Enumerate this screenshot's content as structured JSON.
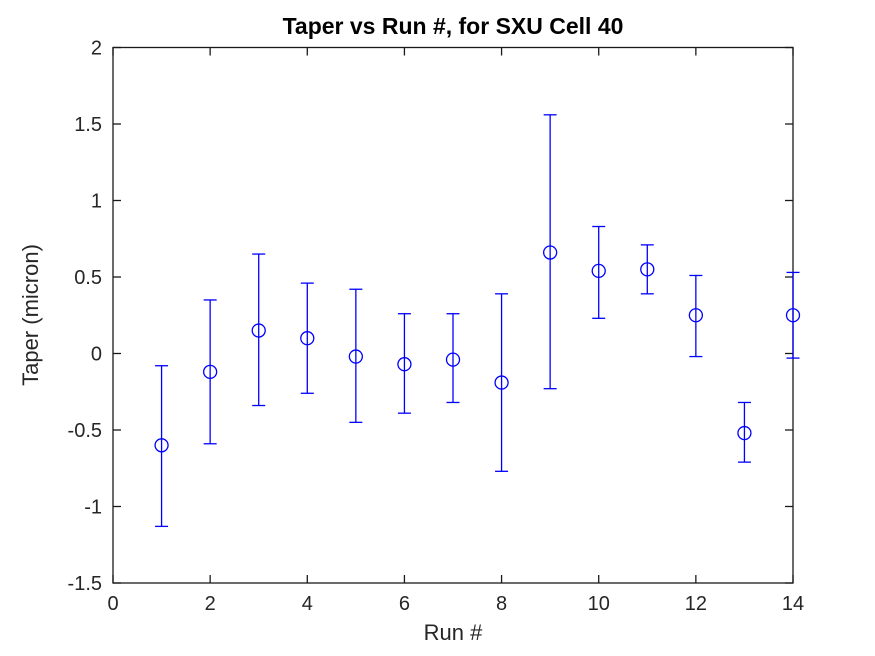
{
  "figure": {
    "background": "#ffffff"
  },
  "chart_data": {
    "type": "scatter",
    "subtype": "errorbar",
    "title": "Taper vs Run #, for SXU Cell 40",
    "xlabel": "Run #",
    "ylabel": "Taper (micron)",
    "xlim": [
      0,
      14
    ],
    "ylim": [
      -1.5,
      2
    ],
    "xticks": [
      0,
      2,
      4,
      6,
      8,
      10,
      12,
      14
    ],
    "yticks": [
      -1.5,
      -1,
      -0.5,
      0,
      0.5,
      1,
      1.5,
      2
    ],
    "grid": false,
    "legend": "none",
    "tick_direction": "in",
    "marker": "circle",
    "colors": {
      "data": "#0000ff",
      "axis": "#1a1a1a",
      "tick_label": "#262626",
      "title": "#000000"
    },
    "series": [
      {
        "name": "Taper",
        "color": "#0000ff",
        "x": [
          1,
          2,
          3,
          4,
          5,
          6,
          7,
          8,
          9,
          10,
          11,
          12,
          13,
          14
        ],
        "y": [
          -0.6,
          -0.12,
          0.15,
          0.1,
          -0.02,
          -0.07,
          -0.04,
          -0.19,
          0.66,
          0.54,
          0.55,
          0.25,
          -0.52,
          0.25
        ],
        "y_lower": [
          -1.13,
          -0.59,
          -0.34,
          -0.26,
          -0.45,
          -0.39,
          -0.32,
          -0.77,
          -0.23,
          0.23,
          0.39,
          -0.02,
          -0.71,
          -0.03
        ],
        "y_upper": [
          -0.08,
          0.35,
          0.65,
          0.46,
          0.42,
          0.26,
          0.26,
          0.39,
          1.56,
          0.83,
          0.71,
          0.51,
          -0.32,
          0.53
        ]
      }
    ]
  }
}
